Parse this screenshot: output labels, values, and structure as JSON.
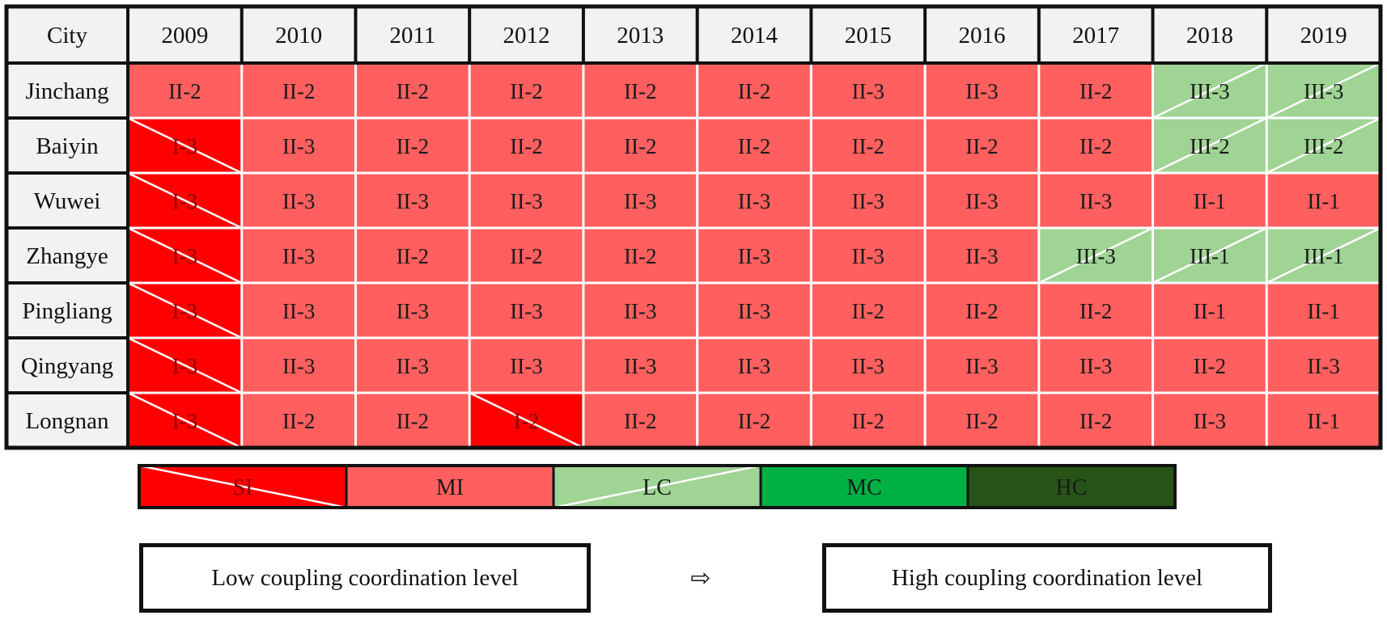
{
  "chart_data": {
    "type": "table",
    "header": {
      "city_label": "City",
      "years": [
        "2009",
        "2010",
        "2011",
        "2012",
        "2013",
        "2014",
        "2015",
        "2016",
        "2017",
        "2018",
        "2019"
      ]
    },
    "rows": [
      {
        "city": "Jinchang",
        "values": [
          "II-2",
          "II-2",
          "II-2",
          "II-2",
          "II-2",
          "II-2",
          "II-3",
          "II-3",
          "II-2",
          "III-3",
          "III-3"
        ]
      },
      {
        "city": "Baiyin",
        "values": [
          "I-3",
          "II-3",
          "II-2",
          "II-2",
          "II-2",
          "II-2",
          "II-2",
          "II-2",
          "II-2",
          "III-2",
          "III-2"
        ]
      },
      {
        "city": "Wuwei",
        "values": [
          "I-3",
          "II-3",
          "II-3",
          "II-3",
          "II-3",
          "II-3",
          "II-3",
          "II-3",
          "II-3",
          "II-1",
          "II-1"
        ]
      },
      {
        "city": "Zhangye",
        "values": [
          "I-3",
          "II-3",
          "II-2",
          "II-2",
          "II-2",
          "II-3",
          "II-3",
          "II-3",
          "III-3",
          "III-1",
          "III-1"
        ]
      },
      {
        "city": "Pingliang",
        "values": [
          "I-3",
          "II-3",
          "II-3",
          "II-3",
          "II-3",
          "II-3",
          "II-2",
          "II-2",
          "II-2",
          "II-1",
          "II-1"
        ]
      },
      {
        "city": "Qingyang",
        "values": [
          "I-3",
          "II-3",
          "II-3",
          "II-3",
          "II-3",
          "II-3",
          "II-3",
          "II-3",
          "II-3",
          "II-2",
          "II-3"
        ]
      },
      {
        "city": "Longnan",
        "values": [
          "I-3",
          "II-2",
          "II-2",
          "I-2",
          "II-2",
          "II-2",
          "II-2",
          "II-2",
          "II-2",
          "II-3",
          "II-1"
        ]
      }
    ],
    "legend": [
      {
        "key": "I",
        "label": "SI",
        "color": "#ff0000",
        "text_color": "#8a0000",
        "slash": "down"
      },
      {
        "key": "II",
        "label": "MI",
        "color": "#ff5f5f",
        "text_color": "#1a1a1a",
        "slash": "none"
      },
      {
        "key": "III",
        "label": "LC",
        "color": "#9fd494",
        "text_color": "#1a1a1a",
        "slash": "up"
      },
      {
        "key": "IV",
        "label": "MC",
        "color": "#00b043",
        "text_color": "#1a1a1a",
        "slash": "none"
      },
      {
        "key": "V",
        "label": "HC",
        "color": "#275317",
        "text_color": "#1a1a1a",
        "slash": "none"
      }
    ],
    "scale": {
      "low": "Low coupling coordination level",
      "arrow": "⇨",
      "high": "High coupling coordination level"
    },
    "colors": {
      "header_bg": "#f2f2f2",
      "grid_line": "#ffffff",
      "frame": "#111111"
    }
  }
}
